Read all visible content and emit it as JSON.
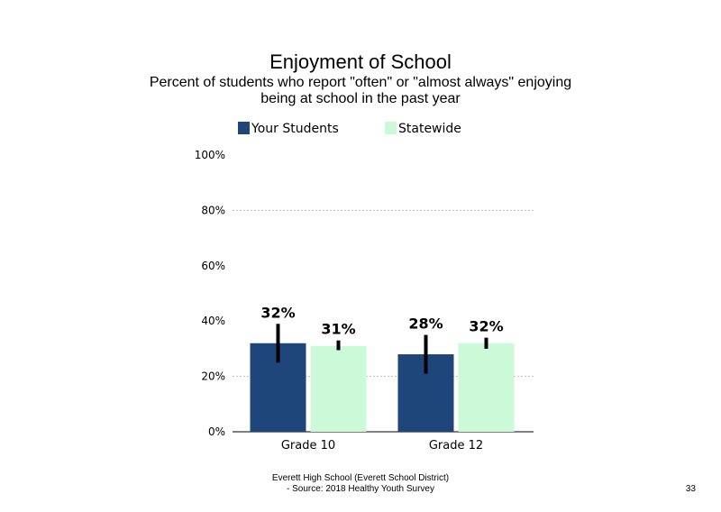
{
  "chart_data": {
    "type": "bar",
    "title": "Enjoyment  of School",
    "subtitle_lines": [
      "Percent of students  who report \"often\" or \"almost  always\" enjoying",
      "being at school in the past year"
    ],
    "categories": [
      "Grade 10",
      "Grade 12"
    ],
    "series": [
      {
        "name": "Your Students",
        "color": "#1f467a",
        "values": [
          32,
          28
        ],
        "labels": [
          "32%",
          "28%"
        ],
        "error_bars": [
          [
            25,
            39
          ],
          [
            21,
            35
          ]
        ]
      },
      {
        "name": "Statewide",
        "color": "#ccfad8",
        "values": [
          31,
          32
        ],
        "labels": [
          "31%",
          "32%"
        ],
        "error_bars": [
          [
            29.5,
            33
          ],
          [
            30,
            34
          ]
        ]
      }
    ],
    "ylim": [
      0,
      100
    ],
    "yticks": [
      0,
      20,
      40,
      60,
      80,
      100
    ],
    "ytick_labels": [
      "0%",
      "20%",
      "40%",
      "60%",
      "80%",
      "100%"
    ],
    "gridlines": [
      20,
      80
    ],
    "grid_color": "#bfbfbf",
    "error_bar_color": "#000000",
    "legend_position": "top"
  },
  "footer": {
    "line1": "Everett High  School (Everett School District)",
    "line2": "- Source: 2018 Healthy  Youth Survey"
  },
  "page_number": "33"
}
